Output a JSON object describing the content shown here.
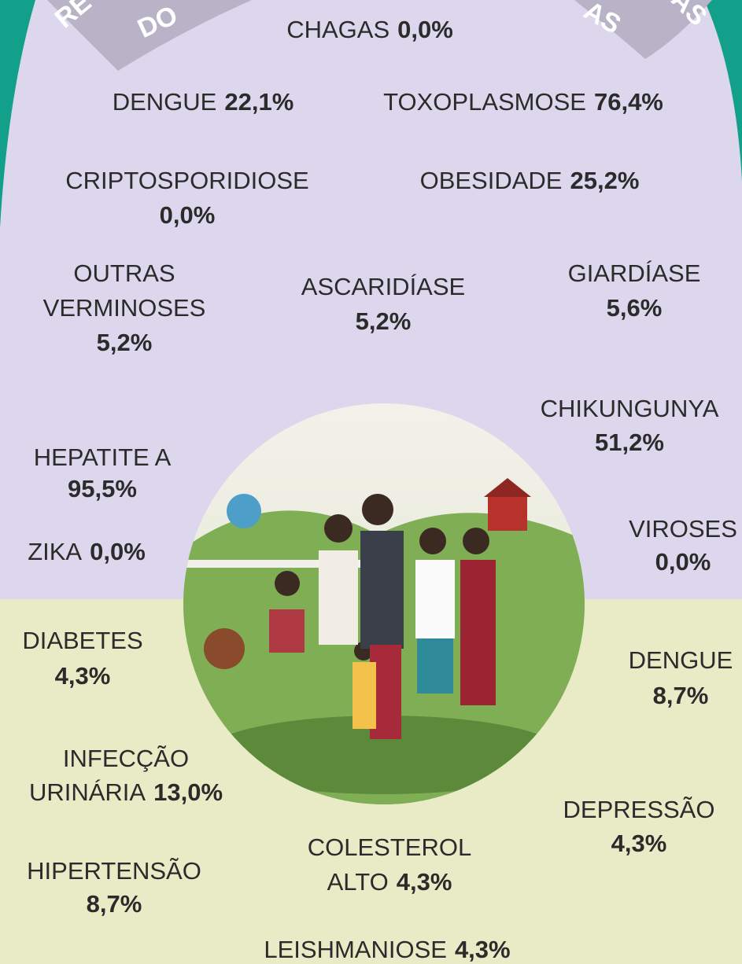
{
  "banner": [
    "RE",
    "DO",
    "AS",
    "AS"
  ],
  "items": [
    {
      "label": [
        "CHAGAS"
      ],
      "value": "0,0%"
    },
    {
      "label": [
        "DENGUE"
      ],
      "value": "22,1%"
    },
    {
      "label": [
        "TOXOPLASMOSE"
      ],
      "value": "76,4%"
    },
    {
      "label": [
        "CRIPTOSPORIDIOSE"
      ],
      "value": "0,0%"
    },
    {
      "label": [
        "OBESIDADE"
      ],
      "value": "25,2%"
    },
    {
      "label": [
        "OUTRAS",
        "VERMINOSES"
      ],
      "value": "5,2%"
    },
    {
      "label": [
        "ASCARIDÍASE"
      ],
      "value": "5,2%"
    },
    {
      "label": [
        "GIARDÍASE"
      ],
      "value": "5,6%"
    },
    {
      "label": [
        "CHIKUNGUNYA"
      ],
      "value": "51,2%"
    },
    {
      "label": [
        "HEPATITE A"
      ],
      "value": "95,5%"
    },
    {
      "label": [
        "ZIKA"
      ],
      "value": "0,0%"
    },
    {
      "label": [
        "VIROSES"
      ],
      "value": "0,0%"
    },
    {
      "label": [
        "DIABETES"
      ],
      "value": "4,3%"
    },
    {
      "label": [
        "DENGUE"
      ],
      "value": "8,7%"
    },
    {
      "label": [
        "INFECÇÃO",
        "URINÁRIA"
      ],
      "value": "13,0%"
    },
    {
      "label": [
        "DEPRESSÃO"
      ],
      "value": "4,3%"
    },
    {
      "label": [
        "COLESTEROL",
        "ALTO"
      ],
      "value": "4,3%"
    },
    {
      "label": [
        "HIPERTENSÃO"
      ],
      "value": "8,7%"
    },
    {
      "label": [
        "LEISHMANIOSE"
      ],
      "value": "4,3%"
    }
  ]
}
